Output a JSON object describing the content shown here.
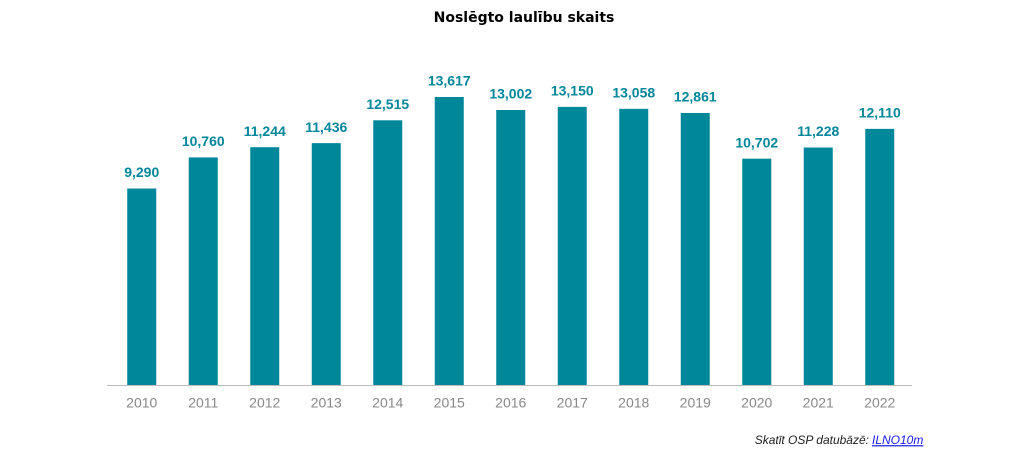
{
  "chart_data": {
    "type": "bar",
    "title": "Noslēgto laulību skaits",
    "categories": [
      "2010",
      "2011",
      "2012",
      "2013",
      "2014",
      "2015",
      "2016",
      "2017",
      "2018",
      "2019",
      "2020",
      "2021",
      "2022"
    ],
    "values": [
      9290,
      10760,
      11244,
      11436,
      12515,
      13617,
      13002,
      13150,
      13058,
      12861,
      10702,
      11228,
      12110
    ],
    "value_labels": [
      "9,290",
      "10,760",
      "11,244",
      "11,436",
      "12,515",
      "13,617",
      "13,002",
      "13,150",
      "13,058",
      "12,861",
      "10,702",
      "11,228",
      "12,110"
    ],
    "color": "#00879a"
  },
  "footer": {
    "text": "Skatīt OSP datubāzē:",
    "link": "ILNO10m"
  }
}
